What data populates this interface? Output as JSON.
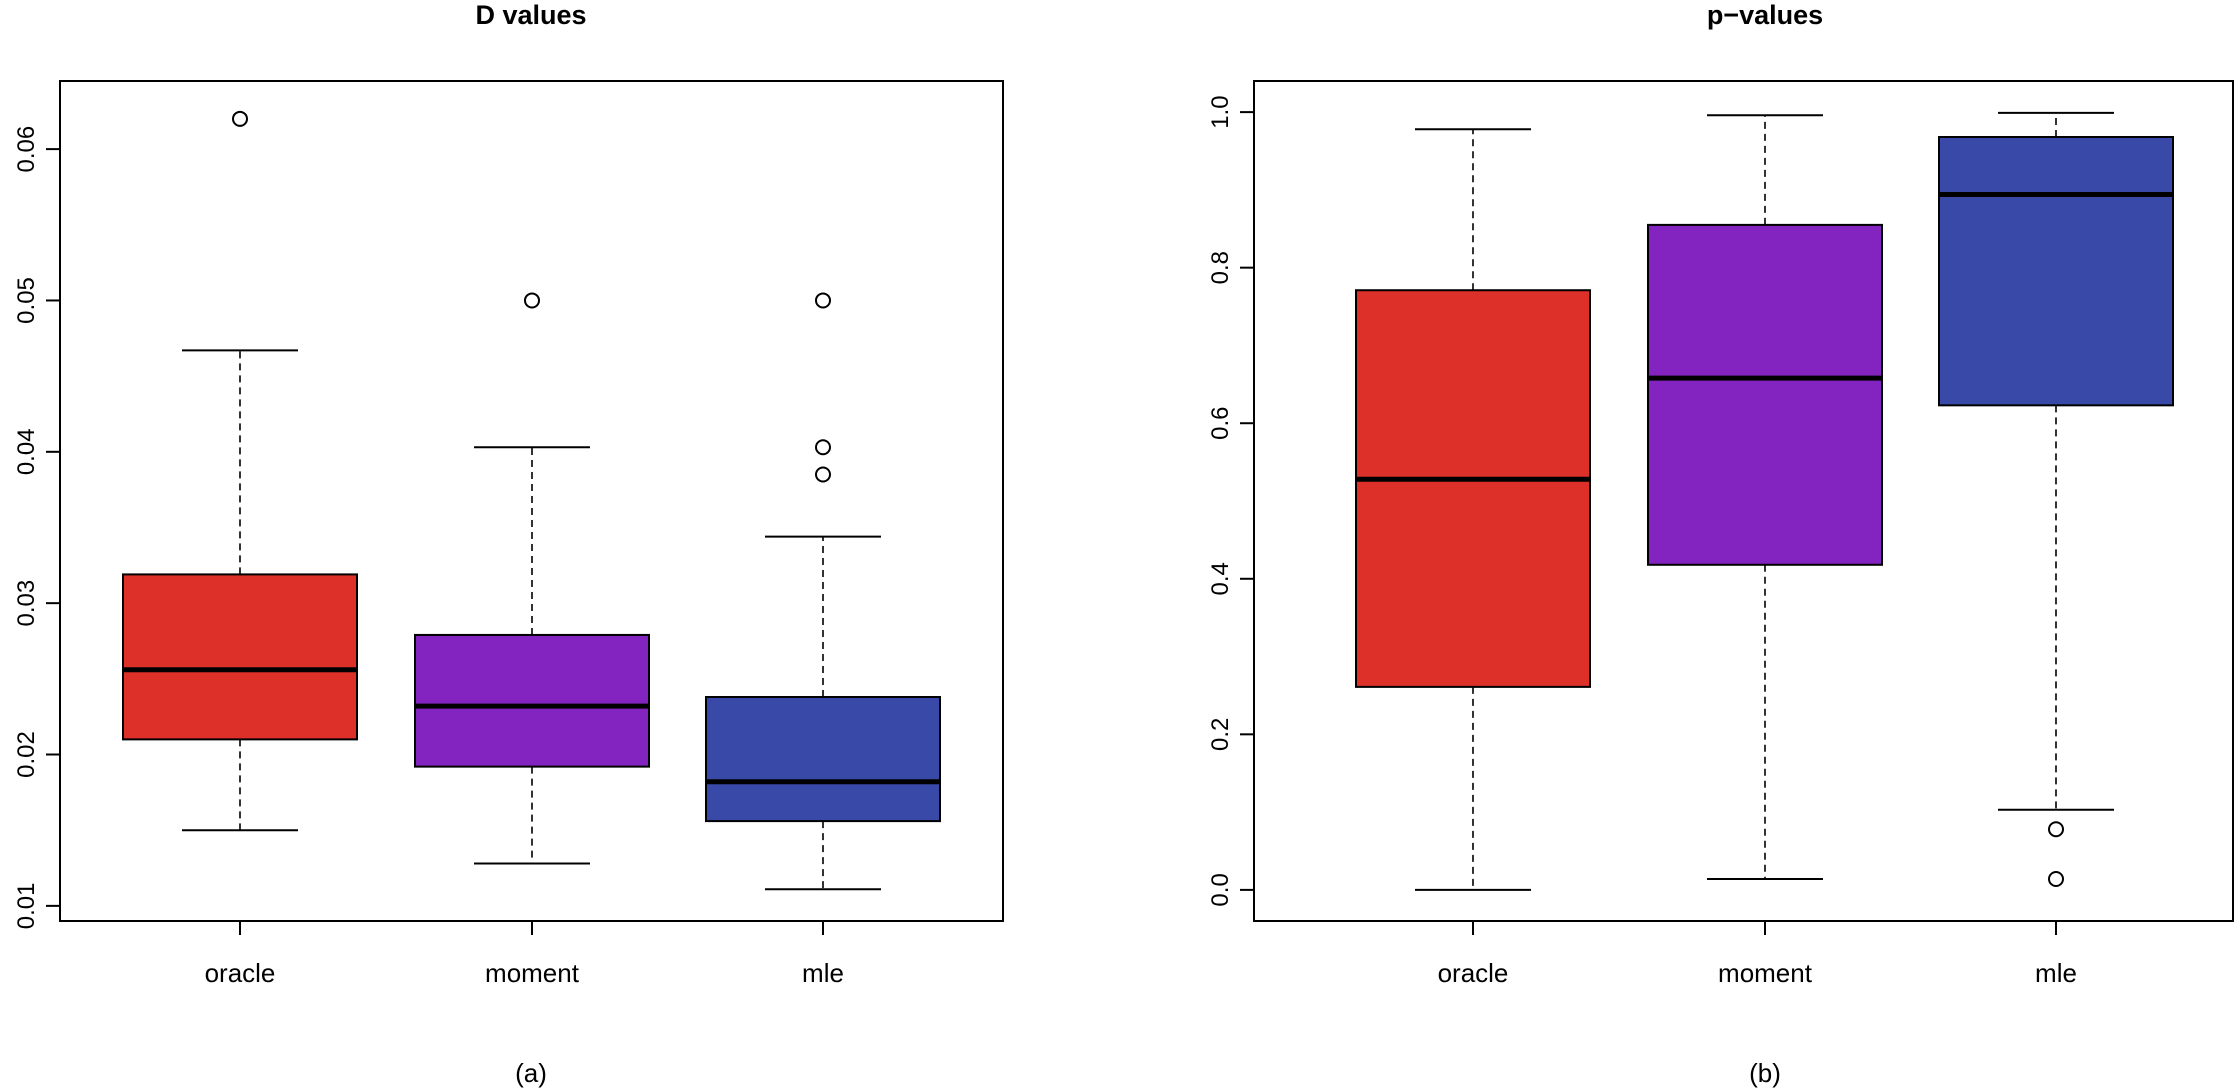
{
  "chart_data": [
    {
      "type": "box",
      "title": "D values",
      "caption": "(a)",
      "xlabel": "",
      "ylabel": "",
      "ylim": [
        0.009,
        0.0645
      ],
      "yticks": [
        "0.01",
        "0.02",
        "0.03",
        "0.04",
        "0.05",
        "0.06"
      ],
      "categories": [
        "oracle",
        "moment",
        "mle"
      ],
      "colors": [
        "#dc3028",
        "#8324c0",
        "#3849a7"
      ],
      "boxes": [
        {
          "name": "oracle",
          "whisker_low": 0.015,
          "q1": 0.021,
          "median": 0.0256,
          "q3": 0.0319,
          "whisker_high": 0.0467,
          "outliers": [
            0.062
          ]
        },
        {
          "name": "moment",
          "whisker_low": 0.0128,
          "q1": 0.0192,
          "median": 0.0232,
          "q3": 0.0279,
          "whisker_high": 0.0403,
          "outliers": [
            0.05
          ]
        },
        {
          "name": "mle",
          "whisker_low": 0.0111,
          "q1": 0.0156,
          "median": 0.0182,
          "q3": 0.0238,
          "whisker_high": 0.0344,
          "outliers": [
            0.05,
            0.0403,
            0.0385
          ]
        }
      ]
    },
    {
      "type": "box",
      "title": "p−values",
      "caption": "(b)",
      "xlabel": "",
      "ylabel": "",
      "ylim": [
        -0.04,
        1.04
      ],
      "yticks": [
        "0.0",
        "0.2",
        "0.4",
        "0.6",
        "0.8",
        "1.0"
      ],
      "categories": [
        "oracle",
        "moment",
        "mle"
      ],
      "colors": [
        "#dc3028",
        "#8324c0",
        "#3849a7"
      ],
      "boxes": [
        {
          "name": "oracle",
          "whisker_low": 0.0,
          "q1": 0.261,
          "median": 0.528,
          "q3": 0.771,
          "whisker_high": 0.978,
          "outliers": []
        },
        {
          "name": "moment",
          "whisker_low": 0.014,
          "q1": 0.418,
          "median": 0.658,
          "q3": 0.855,
          "whisker_high": 0.996,
          "outliers": []
        },
        {
          "name": "mle",
          "whisker_low": 0.103,
          "q1": 0.623,
          "median": 0.894,
          "q3": 0.968,
          "whisker_high": 0.999,
          "outliers": [
            0.078,
            0.014
          ]
        }
      ]
    }
  ]
}
